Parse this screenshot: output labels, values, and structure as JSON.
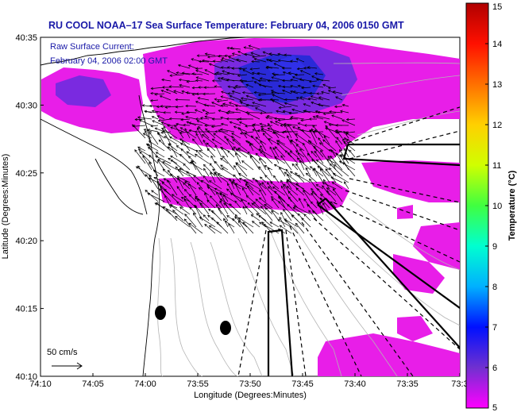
{
  "title": "RU COOL  NOAA–17  Sea Surface Temperature:  February 04, 2006 0150 GMT",
  "annotation": [
    "Raw Surface Current:",
    "February 04, 2006 02:00 GMT"
  ],
  "x_axis": {
    "label": "Longitude (Degrees:Minutes)",
    "ticks": [
      "74:10",
      "74:05",
      "74:00",
      "73:55",
      "73:50",
      "73:45",
      "73:40",
      "73:35",
      "73:3"
    ]
  },
  "y_axis": {
    "label": "Latitude (Degrees:Minutes)",
    "ticks": [
      "40:35",
      "40:30",
      "40:25",
      "40:20",
      "40:15",
      "40:10"
    ]
  },
  "colorbar": {
    "label": "Temperature (°C)",
    "ticks": [
      "15",
      "14",
      "13",
      "12",
      "11",
      "10",
      "9",
      "8",
      "7",
      "6",
      "5"
    ],
    "range": [
      5,
      15
    ],
    "colors": [
      "#ff00ff",
      "#7030d0",
      "#0010ff",
      "#00b0ff",
      "#00ffd0",
      "#40ff40",
      "#d0ff00",
      "#ffd000",
      "#ff7000",
      "#ff1000",
      "#b00000"
    ]
  },
  "scale_arrow": {
    "label": "50 cm/s"
  },
  "colors": {
    "sst_main": "#e81ee8",
    "sst_warm": "#7a2ae0",
    "sst_core": "#2a2ad8",
    "title_text": "#1a1aa8",
    "bathymetry": "#b4b4b4"
  }
}
